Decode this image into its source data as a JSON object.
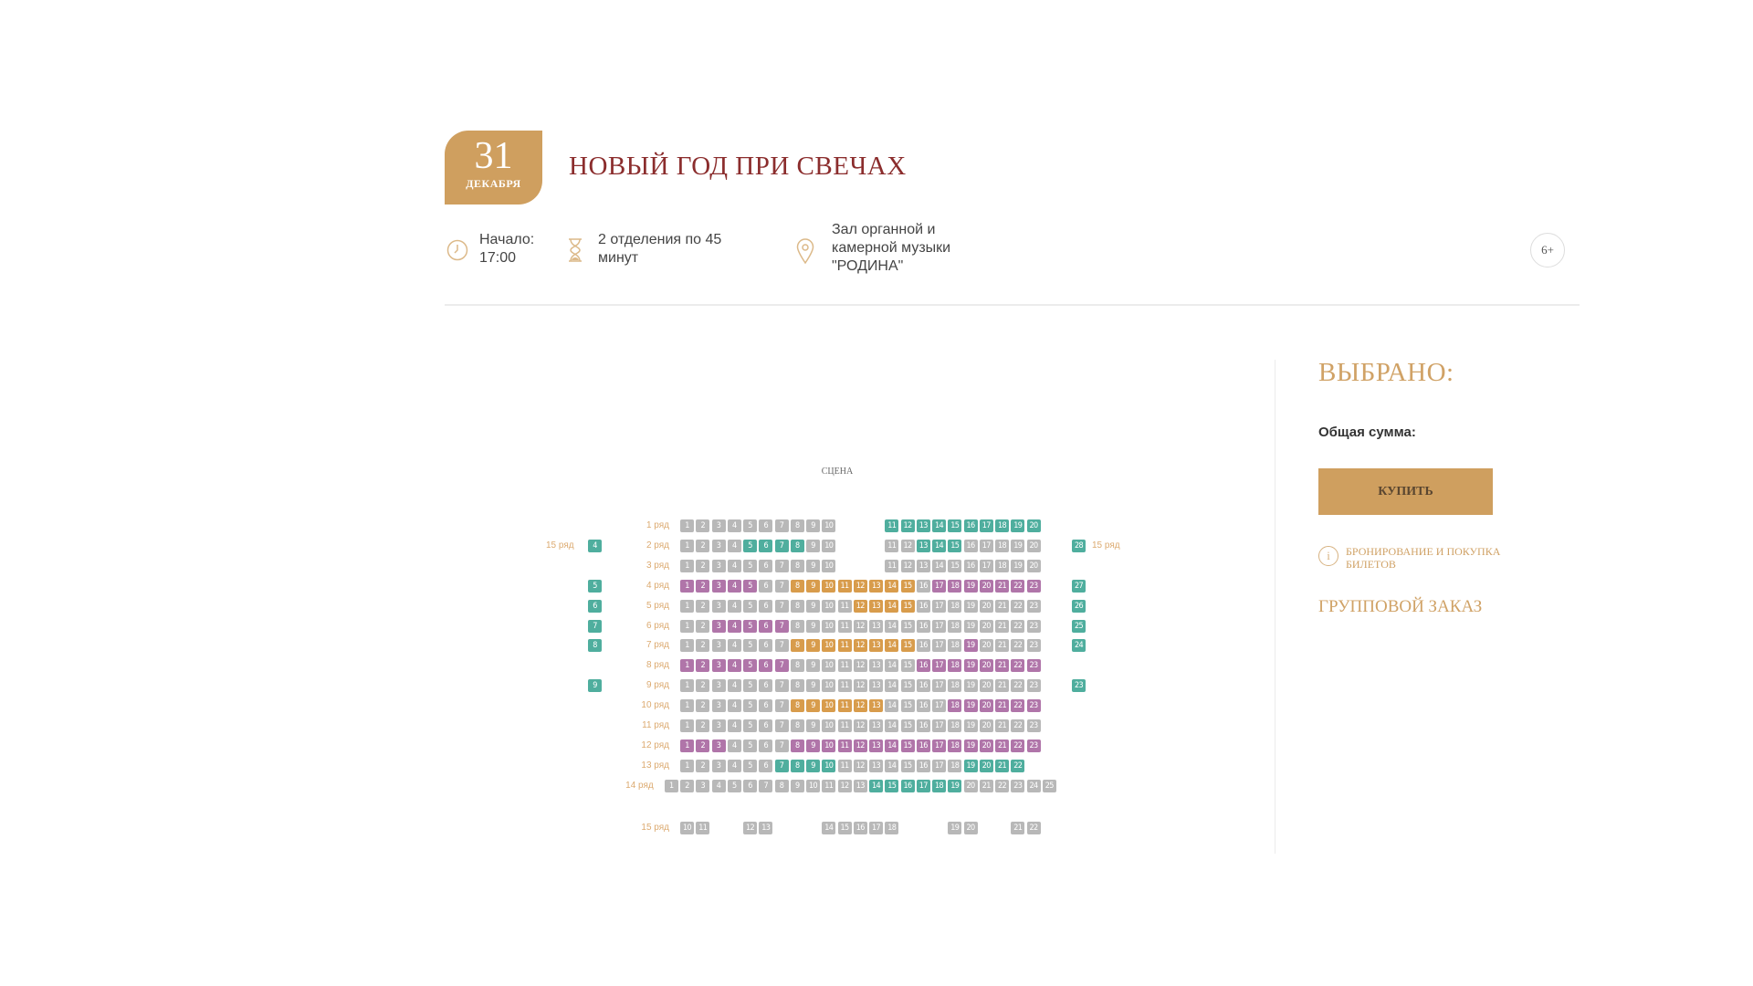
{
  "event": {
    "date_day": "31",
    "date_month": "ДЕКАБРЯ",
    "title": "НОВЫЙ ГОД ПРИ СВЕЧАХ",
    "start_label": "Начало:",
    "start_time": "17:00",
    "duration": [
      "2 отделения по 45",
      "минут"
    ],
    "venue": [
      "Зал органной и",
      "камерной музыки",
      "\"РОДИНА\""
    ],
    "age": "6+"
  },
  "sidebar": {
    "title": "ВЫБРАНО:",
    "total_label": "Общая сумма:",
    "buy_label": "КУПИТЬ",
    "info_link": "БРОНИРОВАНИЕ И ПОКУПКА БИЛЕТОВ",
    "group_order": "ГРУППОВОЙ ЗАКАЗ"
  },
  "hall": {
    "stage_label": "СЦЕНА",
    "colors": {
      "x": "#b8b8b8",
      "t": "#4fae9e",
      "p": "#b075a9",
      "o": "#d89c4c"
    },
    "rows": [
      {
        "label": "1 ряд",
        "seats": "1-10:x _3 11-20:t"
      },
      {
        "label": "2 ряд",
        "seats": "1-4:x 5-8:t 9-10:x _3 11-12:x 13-15:t 16-20:x"
      },
      {
        "label": "3 ряд",
        "seats": "1-10:x _3 11-20:x"
      },
      {
        "label": "4 ряд",
        "seats": "1-5:p 6-7:x 8-15:o 16:x 17-23:p"
      },
      {
        "label": "5 ряд",
        "seats": "1-11:x 12-15:o 16-23:x"
      },
      {
        "label": "6 ряд",
        "seats": "1-2:x 3-7:p 8-23:x"
      },
      {
        "label": "7 ряд",
        "seats": "1-7:x 8-15:o 16-18:x 19:p 20-23:x"
      },
      {
        "label": "8 ряд",
        "seats": "1-7:p 8-15:x 16-23:p"
      },
      {
        "label": "9 ряд",
        "seats": "1-23:x"
      },
      {
        "label": "10 ряд",
        "seats": "1-7:x 8-13:o 14-17:x 18-23:p"
      },
      {
        "label": "11 ряд",
        "seats": "1-23:x"
      },
      {
        "label": "12 ряд",
        "seats": "1-3:p 4-7:x 8-23:p"
      },
      {
        "label": "13 ряд",
        "seats": "1-6:x 7-10:t 11-18:x 19-22:t"
      },
      {
        "label": "14 ряд",
        "seats": "1-13:x 14-19:t 20-25:x"
      },
      {
        "label": "15 ряд",
        "seats": "10-11:x _2 12-13:x _3 14-18:x _3 19-20:x _2 21-22:x"
      }
    ],
    "side_label": "15 ряд",
    "side_left": [
      {
        "row": 2,
        "n": "4"
      },
      {
        "row": 4,
        "n": "5"
      },
      {
        "row": 5,
        "n": "6"
      },
      {
        "row": 6,
        "n": "7"
      },
      {
        "row": 7,
        "n": "8"
      },
      {
        "row": 9,
        "n": "9"
      }
    ],
    "side_right": [
      {
        "row": 2,
        "n": "28"
      },
      {
        "row": 4,
        "n": "27"
      },
      {
        "row": 5,
        "n": "26"
      },
      {
        "row": 6,
        "n": "25"
      },
      {
        "row": 7,
        "n": "24"
      },
      {
        "row": 9,
        "n": "23"
      }
    ]
  }
}
